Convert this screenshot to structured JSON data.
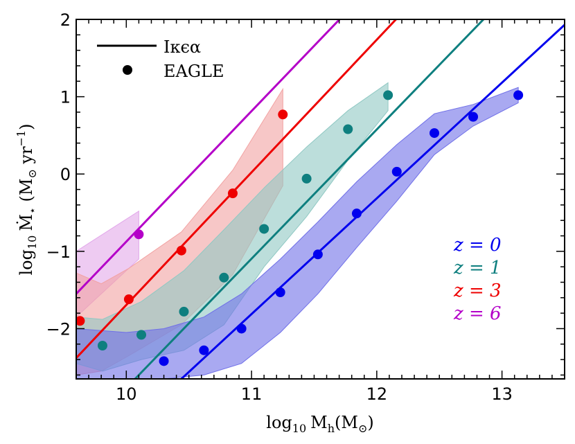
{
  "chart_data": {
    "type": "line",
    "title": "",
    "xlabel": "log10 Mh(M⊙)",
    "xlabel_parts": {
      "log": "log",
      "sub10": "10",
      "m": "M",
      "h": "h",
      "open": "(M",
      "sun": "⊙",
      "close": ")"
    },
    "ylabel": "log10 Ṁ⋆ (M⊙ yr−1)",
    "ylabel_parts": {
      "log": "log",
      "sub10": "10",
      "mdot": "Ṁ",
      "star": "⋆",
      "open": " (M",
      "sun": "⊙",
      "yr": " yr",
      "exp": "−1",
      "close": ")"
    },
    "xlim": [
      9.6,
      13.5
    ],
    "ylim": [
      -2.65,
      2.0
    ],
    "xticks": [
      10,
      11,
      12,
      13
    ],
    "xtick_labels": [
      "10",
      "11",
      "12",
      "13"
    ],
    "yticks": [
      -2,
      -1,
      0,
      1,
      2
    ],
    "ytick_labels": [
      "−2",
      "−1",
      "0",
      "1",
      "2"
    ],
    "legend": {
      "position": "top-left",
      "line_label": "Iκϵα",
      "dots_label": "EAGLE"
    },
    "series": [
      {
        "name": "z=0",
        "label": "z = 0",
        "color": "#0000ee",
        "fill": "#6f6fe8",
        "line": {
          "x": [
            10.44,
            13.6
          ],
          "y": [
            -2.65,
            2.08
          ]
        },
        "points": {
          "x": [
            10.3,
            10.62,
            10.92,
            11.23,
            11.53,
            11.84,
            12.16,
            12.46,
            12.77,
            13.13
          ],
          "y": [
            -2.42,
            -2.28,
            -2.0,
            -1.53,
            -1.04,
            -0.51,
            0.03,
            0.53,
            0.74,
            1.02
          ]
        },
        "band": {
          "x": [
            9.6,
            10.0,
            10.3,
            10.62,
            10.92,
            11.23,
            11.53,
            11.84,
            12.16,
            12.46,
            12.77,
            13.13
          ],
          "upper": [
            -2.0,
            -2.05,
            -2.0,
            -1.85,
            -1.55,
            -1.1,
            -0.62,
            -0.1,
            0.38,
            0.78,
            0.9,
            1.12
          ],
          "lower": [
            -2.65,
            -2.65,
            -2.65,
            -2.6,
            -2.45,
            -2.05,
            -1.55,
            -0.95,
            -0.35,
            0.25,
            0.62,
            0.92
          ]
        }
      },
      {
        "name": "z=1",
        "label": "z = 1",
        "color": "#0e7f7f",
        "fill": "#8fc8c3",
        "line": {
          "x": [
            10.07,
            12.9
          ],
          "y": [
            -2.65,
            2.08
          ]
        },
        "points": {
          "x": [
            9.81,
            10.12,
            10.46,
            10.78,
            11.1,
            11.44,
            11.77,
            12.09
          ],
          "y": [
            -2.22,
            -2.08,
            -1.78,
            -1.34,
            -0.71,
            -0.06,
            0.58,
            1.02
          ]
        },
        "band": {
          "x": [
            9.6,
            9.81,
            10.12,
            10.46,
            10.78,
            11.1,
            11.44,
            11.77,
            12.09
          ],
          "upper": [
            -1.85,
            -1.88,
            -1.65,
            -1.25,
            -0.72,
            -0.18,
            0.35,
            0.82,
            1.18
          ],
          "lower": [
            -2.45,
            -2.55,
            -2.4,
            -2.28,
            -1.95,
            -1.2,
            -0.55,
            0.18,
            0.82
          ]
        }
      },
      {
        "name": "z=3",
        "label": "z = 3",
        "color": "#ee0000",
        "fill": "#f2a2a2",
        "line": {
          "x": [
            9.6,
            12.2
          ],
          "y": [
            -2.38,
            2.08
          ]
        },
        "points": {
          "x": [
            9.63,
            10.02,
            10.44,
            10.85,
            11.25
          ],
          "y": [
            -1.9,
            -1.62,
            -0.99,
            -0.25,
            0.77
          ]
        },
        "band": {
          "x": [
            9.6,
            9.8,
            10.02,
            10.44,
            10.85,
            11.25
          ],
          "upper": [
            -1.28,
            -1.42,
            -1.22,
            -0.75,
            0.05,
            1.1
          ],
          "lower": [
            -2.6,
            -2.55,
            -2.35,
            -1.95,
            -1.3,
            -0.15
          ]
        }
      },
      {
        "name": "z=6",
        "label": "z = 6",
        "color": "#b400c8",
        "fill": "#e2a8ea",
        "line": {
          "x": [
            9.6,
            11.75
          ],
          "y": [
            -1.55,
            2.08
          ]
        },
        "points": {
          "x": [
            10.1
          ],
          "y": [
            -0.78
          ]
        },
        "band": {
          "x": [
            9.6,
            10.1
          ],
          "upper": [
            -1.0,
            -0.48
          ],
          "lower": [
            -1.85,
            -1.1
          ]
        }
      }
    ]
  }
}
